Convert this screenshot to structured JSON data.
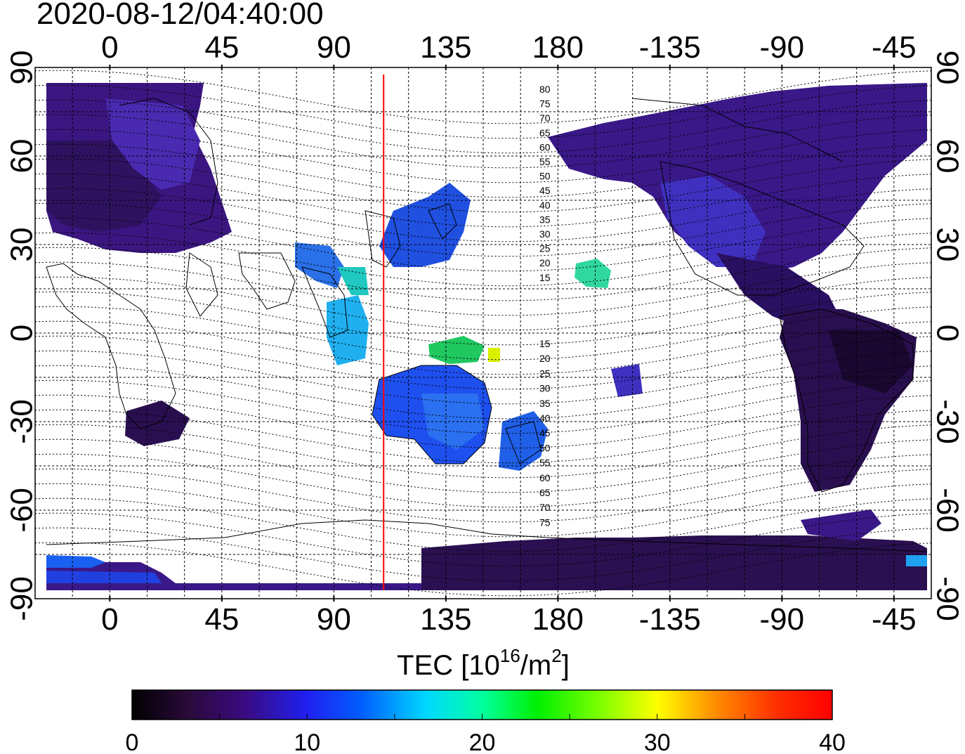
{
  "timestamp": "2020-08-12/04:40:00",
  "map": {
    "type": "equirectangular",
    "central_longitude": 120,
    "lon_range": [
      -30,
      330
    ],
    "lat_range": [
      -90,
      90
    ],
    "grid": true,
    "marked_longitude": 110,
    "marked_longitude_color": "#ff0000"
  },
  "axes": {
    "top_ticks": [
      "0",
      "45",
      "90",
      "135",
      "180",
      "-135",
      "-90",
      "-45"
    ],
    "bottom_ticks": [
      "0",
      "45",
      "90",
      "135",
      "180",
      "-135",
      "-90",
      "-45"
    ],
    "left_ticks": [
      "90",
      "60",
      "30",
      "0",
      "-30",
      "-60",
      "-90"
    ],
    "right_ticks": [
      "90",
      "60",
      "30",
      "0",
      "-30",
      "-60",
      "-90"
    ]
  },
  "contours": {
    "north_labels": [
      "80",
      "75",
      "70",
      "65",
      "60",
      "55",
      "50",
      "45",
      "40",
      "35",
      "30",
      "25",
      "20",
      "15"
    ],
    "south_labels": [
      "15",
      "20",
      "25",
      "30",
      "35",
      "40",
      "45",
      "50",
      "55",
      "60",
      "65",
      "70",
      "75"
    ]
  },
  "colorbar": {
    "label_main": "TEC  [10",
    "label_exp": "16",
    "label_mid": "/m",
    "label_exp2": "2",
    "label_end": "]",
    "min": 0,
    "max": 40,
    "ticks": [
      "0",
      "10",
      "20",
      "30",
      "40"
    ],
    "colors": [
      "#000000",
      "#3a0a4a",
      "#4a0fa0",
      "#1f1fe0",
      "#0040ff",
      "#00a0ff",
      "#00ffff",
      "#00ff80",
      "#00ff00",
      "#a0ff00",
      "#ffff00",
      "#ffa000",
      "#ff3000",
      "#ff0000"
    ]
  }
}
